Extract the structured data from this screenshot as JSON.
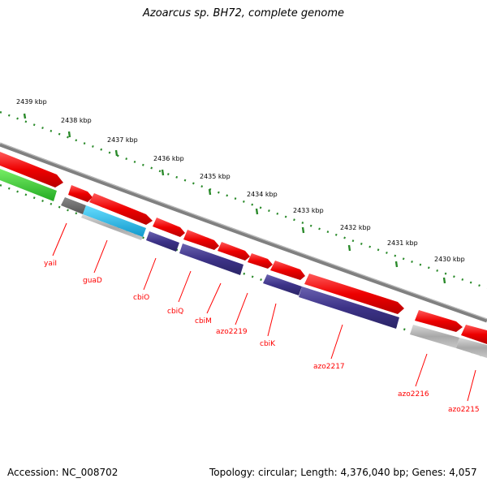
{
  "title": "Azoarcus sp. BH72, complete genome",
  "ticks": [
    "2439 kbp",
    "2438 kbp",
    "2437 kbp",
    "2436 kbp",
    "2435 kbp",
    "2434 kbp",
    "2433 kbp",
    "2432 kbp",
    "2431 kbp",
    "2430 kbp"
  ],
  "genes": [
    "yaiI",
    "guaD",
    "cbiO",
    "cbiQ",
    "cbiM",
    "azo2219",
    "cbiK",
    "azo2217",
    "azo2216",
    "azo2215"
  ],
  "footer": {
    "accession": "Accession: NC_008702",
    "topology": "Topology: circular; Length: 4,376,040 bp; Genes: 4,057"
  },
  "colors": {
    "forward_cds": "#ff0000",
    "reverse_cds": "#3d3388",
    "other_gene": "#9aa0a6",
    "trna": "#22bbee",
    "highlight": "#33cc33",
    "backbone": "#808080",
    "ticks": "#2a8a2a",
    "labels": "#ff0000"
  }
}
